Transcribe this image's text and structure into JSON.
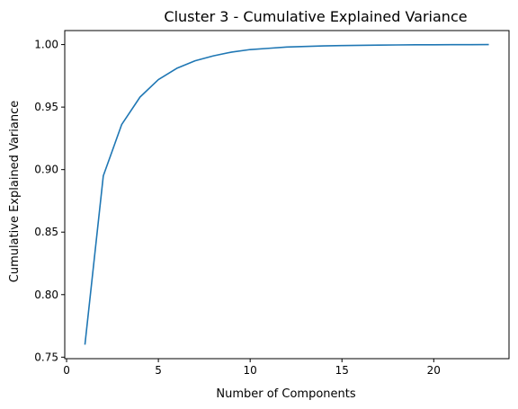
{
  "chart_data": {
    "type": "line",
    "title": "Cluster 3 - Cumulative Explained Variance",
    "xlabel": "Number of Components",
    "ylabel": "Cumulative Explained Variance",
    "xlim": [
      -0.1,
      24.1
    ],
    "ylim": [
      0.7488,
      1.0112
    ],
    "xticks": [
      0,
      5,
      10,
      15,
      20
    ],
    "xtick_labels": [
      "0",
      "5",
      "10",
      "15",
      "20"
    ],
    "yticks": [
      0.75,
      0.8,
      0.85,
      0.9,
      0.95,
      1.0
    ],
    "ytick_labels": [
      "0.75",
      "0.80",
      "0.85",
      "0.90",
      "0.95",
      "1.00"
    ],
    "grid": false,
    "series": [
      {
        "color": "#1f77b4",
        "x": [
          1,
          2,
          3,
          4,
          5,
          6,
          7,
          8,
          9,
          10,
          11,
          12,
          13,
          14,
          15,
          16,
          17,
          18,
          19,
          20,
          21,
          22,
          23
        ],
        "y": [
          0.76,
          0.895,
          0.936,
          0.958,
          0.972,
          0.981,
          0.987,
          0.991,
          0.994,
          0.996,
          0.997,
          0.998,
          0.9985,
          0.9989,
          0.9992,
          0.9994,
          0.9996,
          0.9997,
          0.9998,
          0.99985,
          0.9999,
          0.99995,
          1.0
        ]
      }
    ]
  }
}
